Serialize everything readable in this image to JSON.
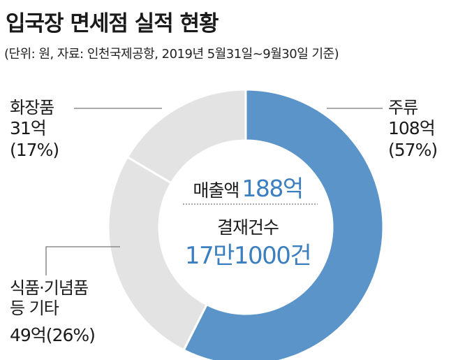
{
  "header": {
    "title": "입국장 면세점 실적 현황",
    "subtitle": "(단위: 원, 자료: 인천국제공항, 2019년 5월31일~9월30일 기준)"
  },
  "center": {
    "sales_label": "매출액",
    "sales_value": "188억",
    "transactions_label": "결재건수",
    "transactions_value": "17만1000건"
  },
  "labels": {
    "liquor": {
      "name": "주류",
      "value": "108억",
      "pct": "(57%)"
    },
    "cosmetics": {
      "name": "화장품",
      "value": "31억",
      "pct": "(17%)"
    },
    "food": {
      "name_line1": "식품·기념품",
      "name_line2": "등 기타",
      "value": "49억(26%)"
    }
  },
  "colors": {
    "highlight": "#5b94c8",
    "other": "#e3e3e3",
    "accent_text": "#3b7fc0"
  },
  "chart_data": {
    "type": "pie",
    "variant": "donut",
    "categories": [
      "주류",
      "식품·기념품 등 기타",
      "화장품"
    ],
    "values": [
      108,
      49,
      31
    ],
    "percent": [
      57,
      26,
      17
    ],
    "unit": "억"
  }
}
